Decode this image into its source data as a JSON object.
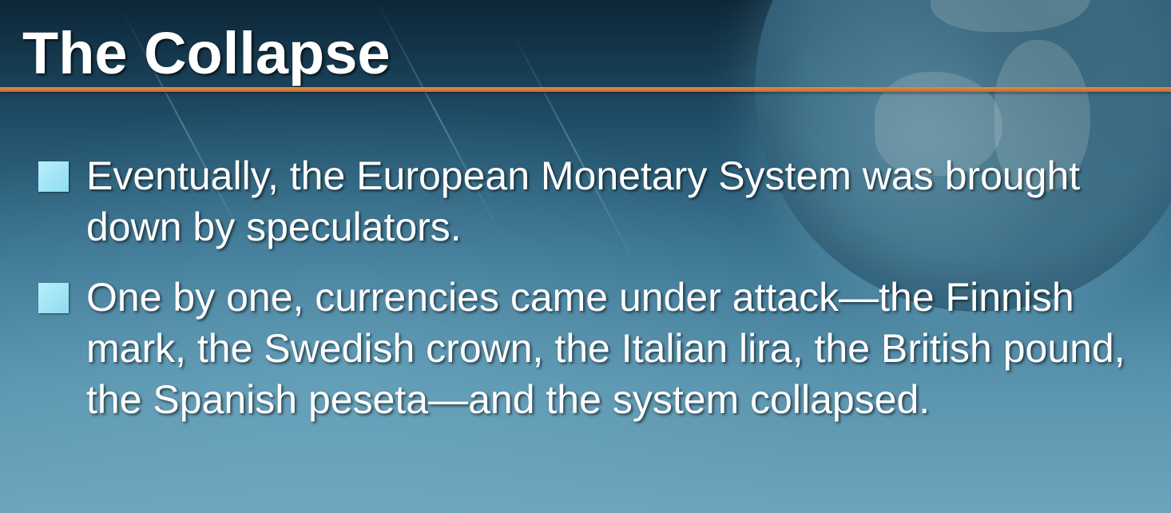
{
  "slide": {
    "title": "The Collapse",
    "bullets": [
      {
        "text": "Eventually, the European Monetary System was brought down by speculators."
      },
      {
        "text": "One by one, currencies came under attack—the Finnish mark, the Swedish crown, the Italian lira, the British pound, the Spanish peseta—and the system collapsed."
      }
    ]
  },
  "theme": {
    "accent_rule_color": "#d8783a",
    "bullet_marker_color": "#a6e6f7",
    "text_color": "#ffffff",
    "background_top": "#0d2637",
    "background_bottom": "#6ea4bb"
  },
  "icons": {
    "background_decoration": "globe-icon",
    "bullet_marker": "square-bullet-icon"
  }
}
